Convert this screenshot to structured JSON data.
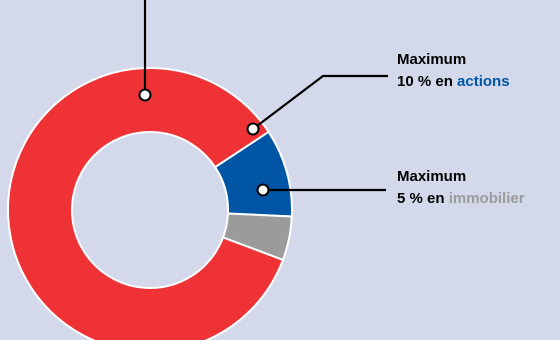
{
  "chart_data": {
    "type": "pie",
    "donut": true,
    "slices": [
      {
        "label_prefix": "",
        "label_pre": "",
        "label_word": "",
        "value": 85,
        "color": "#ee3235"
      },
      {
        "label_prefix": "Maximum",
        "label_pre": "10 % en ",
        "label_word": "actions",
        "word_color": "#0055a5",
        "value": 10,
        "color": "#0055a5"
      },
      {
        "label_prefix": "Maximum",
        "label_pre": "5 % en ",
        "label_word": "immobilier",
        "word_color": "#9b9b9b",
        "value": 5,
        "color": "#9b9b9b"
      }
    ]
  },
  "colors": {
    "background": "#d3d9ea",
    "text": "#000000"
  }
}
